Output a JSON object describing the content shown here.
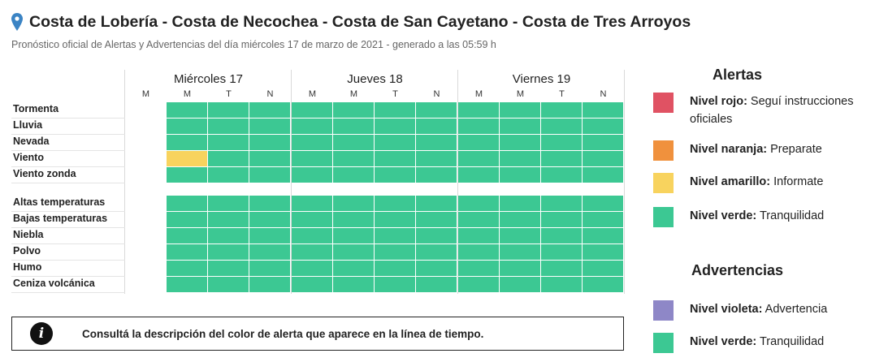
{
  "header": {
    "pin_icon": "map-pin-icon",
    "title": "Costa de Lobería - Costa de Necochea - Costa de San Cayetano - Costa de Tres Arroyos",
    "subtitle": "Pronóstico oficial de Alertas y Advertencias del día miércoles 17 de marzo de 2021 - generado a las 05:59 h"
  },
  "timeline": {
    "days": [
      {
        "label": "Miércoles 17",
        "periods": [
          "M",
          "M",
          "T",
          "N"
        ]
      },
      {
        "label": "Jueves 18",
        "periods": [
          "M",
          "M",
          "T",
          "N"
        ]
      },
      {
        "label": "Viernes 19",
        "periods": [
          "M",
          "M",
          "T",
          "N"
        ]
      }
    ],
    "colors": {
      "verde": "#3cc893",
      "amarillo": "#f8d35e",
      "empty": "#ffffff"
    },
    "groups": [
      {
        "rows": [
          {
            "label": "Tormenta",
            "cells": [
              "empty",
              "verde",
              "verde",
              "verde",
              "verde",
              "verde",
              "verde",
              "verde",
              "verde",
              "verde",
              "verde",
              "verde"
            ]
          },
          {
            "label": "Lluvia",
            "cells": [
              "empty",
              "verde",
              "verde",
              "verde",
              "verde",
              "verde",
              "verde",
              "verde",
              "verde",
              "verde",
              "verde",
              "verde"
            ]
          },
          {
            "label": "Nevada",
            "cells": [
              "empty",
              "verde",
              "verde",
              "verde",
              "verde",
              "verde",
              "verde",
              "verde",
              "verde",
              "verde",
              "verde",
              "verde"
            ]
          },
          {
            "label": "Viento",
            "cells": [
              "empty",
              "amarillo",
              "verde",
              "verde",
              "verde",
              "verde",
              "verde",
              "verde",
              "verde",
              "verde",
              "verde",
              "verde"
            ]
          },
          {
            "label": "Viento zonda",
            "cells": [
              "empty",
              "verde",
              "verde",
              "verde",
              "verde",
              "verde",
              "verde",
              "verde",
              "verde",
              "verde",
              "verde",
              "verde"
            ]
          }
        ]
      },
      {
        "rows": [
          {
            "label": "Altas temperaturas",
            "cells": [
              "empty",
              "verde",
              "verde",
              "verde",
              "verde",
              "verde",
              "verde",
              "verde",
              "verde",
              "verde",
              "verde",
              "verde"
            ]
          },
          {
            "label": "Bajas temperaturas",
            "cells": [
              "empty",
              "verde",
              "verde",
              "verde",
              "verde",
              "verde",
              "verde",
              "verde",
              "verde",
              "verde",
              "verde",
              "verde"
            ]
          },
          {
            "label": "Niebla",
            "cells": [
              "empty",
              "verde",
              "verde",
              "verde",
              "verde",
              "verde",
              "verde",
              "verde",
              "verde",
              "verde",
              "verde",
              "verde"
            ]
          },
          {
            "label": "Polvo",
            "cells": [
              "empty",
              "verde",
              "verde",
              "verde",
              "verde",
              "verde",
              "verde",
              "verde",
              "verde",
              "verde",
              "verde",
              "verde"
            ]
          },
          {
            "label": "Humo",
            "cells": [
              "empty",
              "verde",
              "verde",
              "verde",
              "verde",
              "verde",
              "verde",
              "verde",
              "verde",
              "verde",
              "verde",
              "verde"
            ]
          },
          {
            "label": "Ceniza volcánica",
            "cells": [
              "empty",
              "verde",
              "verde",
              "verde",
              "verde",
              "verde",
              "verde",
              "verde",
              "verde",
              "verde",
              "verde",
              "verde"
            ]
          }
        ]
      }
    ]
  },
  "info": {
    "icon": "info-icon",
    "icon_glyph": "i",
    "text": "Consultá la descripción del color de alerta que aparece en la línea de tiempo."
  },
  "legend": {
    "alertas_title": "Alertas",
    "alertas": [
      {
        "level": "Nivel rojo:",
        "desc": " Seguí instrucciones oficiales",
        "color": "#e05263"
      },
      {
        "level": "Nivel naranja:",
        "desc": " Preparate",
        "color": "#f0913d"
      },
      {
        "level": "Nivel amarillo:",
        "desc": " Informate",
        "color": "#f8d35e"
      },
      {
        "level": "Nivel verde:",
        "desc": " Tranquilidad",
        "color": "#3cc893"
      }
    ],
    "advertencias_title": "Advertencias",
    "advertencias": [
      {
        "level": "Nivel violeta:",
        "desc": " Advertencia",
        "color": "#8e87c7"
      },
      {
        "level": "Nivel verde:",
        "desc": " Tranquilidad",
        "color": "#3cc893"
      }
    ]
  }
}
